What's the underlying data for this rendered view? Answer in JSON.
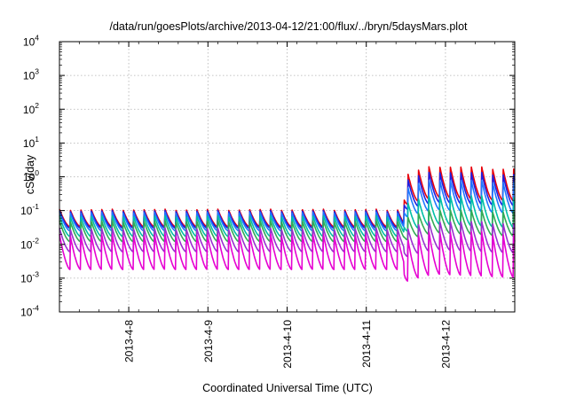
{
  "chart_data": {
    "type": "line",
    "title": "/data/run/goesPlots/archive/2013-04-12/21:00/flux/../bryn/5daysMars.plot",
    "xlabel": "Coordinated Universal Time (UTC)",
    "ylabel": "cSv/day",
    "y_scale": "log",
    "ylim": [
      0.0001,
      10000
    ],
    "y_ticks": [
      {
        "base": "10",
        "exp": "4",
        "value": 10000
      },
      {
        "base": "10",
        "exp": "3",
        "value": 1000
      },
      {
        "base": "10",
        "exp": "2",
        "value": 100
      },
      {
        "base": "10",
        "exp": "1",
        "value": 10
      },
      {
        "base": "10",
        "exp": "0",
        "value": 1
      },
      {
        "base": "10",
        "exp": "-1",
        "value": 0.1
      },
      {
        "base": "10",
        "exp": "-2",
        "value": 0.01
      },
      {
        "base": "10",
        "exp": "-3",
        "value": 0.001
      },
      {
        "base": "10",
        "exp": "-4",
        "value": 0.0001
      }
    ],
    "x_range": [
      "2013-04-07 03:00",
      "2013-04-12 21:00"
    ],
    "x_ticks": [
      {
        "label": "2013-4-8",
        "value": "2013-04-08 00:00"
      },
      {
        "label": "2013-4-9",
        "value": "2013-04-09 00:00"
      },
      {
        "label": "2013-4-10",
        "value": "2013-04-10 00:00"
      },
      {
        "label": "2013-4-11",
        "value": "2013-04-11 00:00"
      },
      {
        "label": "2013-4-12",
        "value": "2013-04-12 00:00"
      }
    ],
    "grid": true,
    "oscillation_period_hours": 3.2,
    "event_onset": "2013-04-11 11:30",
    "series": [
      {
        "color": "#e8000b",
        "baseline_peak": 0.11,
        "baseline_trough": 0.033,
        "event_peak": 2.5,
        "event_trough": 0.28
      },
      {
        "color": "#1f1fe0",
        "baseline_peak": 0.1,
        "baseline_trough": 0.03,
        "event_peak": 1.7,
        "event_trough": 0.2
      },
      {
        "color": "#1e78ff",
        "baseline_peak": 0.09,
        "baseline_trough": 0.025,
        "event_peak": 1.0,
        "event_trough": 0.12
      },
      {
        "color": "#00bfa6",
        "baseline_peak": 0.07,
        "baseline_trough": 0.017,
        "event_peak": 0.35,
        "event_trough": 0.045
      },
      {
        "color": "#33aa55",
        "baseline_peak": 0.05,
        "baseline_trough": 0.012,
        "event_peak": 0.13,
        "event_trough": 0.025
      },
      {
        "color": "#9b2fd0",
        "baseline_peak": 0.03,
        "baseline_trough": 0.006,
        "event_peak": 0.06,
        "event_trough": 0.008
      },
      {
        "color": "#e600d2",
        "baseline_peak": 0.02,
        "baseline_trough": 0.0018,
        "event_peak": 0.03,
        "event_trough": 0.0015
      }
    ]
  }
}
